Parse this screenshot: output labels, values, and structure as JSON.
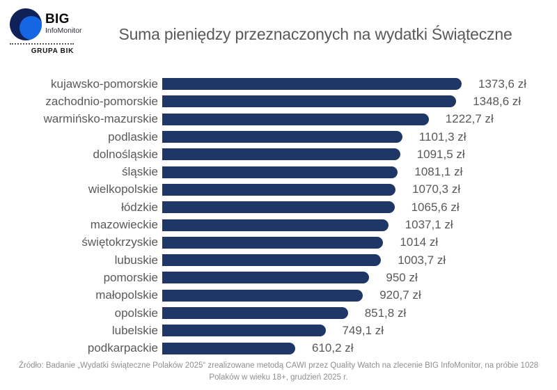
{
  "logo": {
    "brand": "BIG",
    "sub_brand": "InfoMonitor",
    "group": "GRUPA BIK"
  },
  "title": "Suma pieniędzy przeznaczonych na wydatki Świąteczne",
  "chart_data": {
    "type": "bar",
    "orientation": "horizontal",
    "title": "Suma pieniędzy przeznaczonych na wydatki Świąteczne",
    "categories": [
      "kujawsko-pomorskie",
      "zachodnio-pomorskie",
      "warmińsko-mazurskie",
      "podlaskie",
      "dolnośląskie",
      "śląskie",
      "wielkopolskie",
      "łódzkie",
      "mazowieckie",
      "świętokrzyskie",
      "lubuskie",
      "pomorskie",
      "małopolskie",
      "opolskie",
      "lubelskie",
      "podkarpackie"
    ],
    "values": [
      1373.6,
      1348.6,
      1222.7,
      1101.3,
      1091.5,
      1081.1,
      1070.3,
      1065.6,
      1037.1,
      1014,
      1003.7,
      950,
      920.7,
      851.8,
      749.1,
      610.2
    ],
    "value_labels": [
      "1373,6 zł",
      "1348,6 zł",
      "1222,7 zł",
      "1101,3 zł",
      "1091,5 zł",
      "1081,1 zł",
      "1070,3 zł",
      "1065,6 zł",
      "1037,1 zł",
      "1014 zł",
      "1003,7 zł",
      "950 zł",
      "920,7 zł",
      "851,8 zł",
      "749,1 zł",
      "610,2 zł"
    ],
    "unit": "zł",
    "xlim": [
      0,
      1400
    ],
    "grid": false,
    "legend": "none",
    "bar_color": "#1e3766",
    "label_color": "#595959"
  },
  "footer": "Źródło: Badanie „Wydatki świąteczne Polaków 2025“ zrealizowane metodą CAWI przez Quality Watch na zlecenie BIG InfoMonitor, na próbie 1028 Polaków w wieku 18+, grudzień 2025 r."
}
